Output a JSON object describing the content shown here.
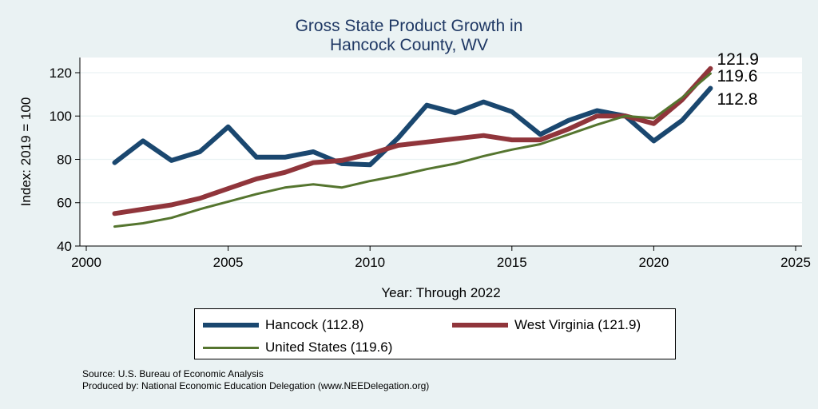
{
  "chart_data": {
    "type": "line",
    "title_line1": "Gross State Product Growth in",
    "title_line2": "Hancock County, WV",
    "xlabel": "Year: Through 2022",
    "ylabel": "Index: 2019 = 100",
    "xlim": [
      2000,
      2025
    ],
    "ylim": [
      40,
      127
    ],
    "xticks": [
      2000,
      2005,
      2010,
      2015,
      2020,
      2025
    ],
    "yticks": [
      40,
      60,
      80,
      100,
      120
    ],
    "x": [
      2001,
      2002,
      2003,
      2004,
      2005,
      2006,
      2007,
      2008,
      2009,
      2010,
      2011,
      2012,
      2013,
      2014,
      2015,
      2016,
      2017,
      2018,
      2019,
      2020,
      2021,
      2022
    ],
    "series": [
      {
        "name": "Hancock",
        "legend_label": "Hancock  (112.8)",
        "end_label": "112.8",
        "color": "#1a476f",
        "width": 6,
        "values": [
          78.5,
          88.5,
          79.5,
          83.5,
          95,
          81,
          81,
          83.5,
          78,
          77.5,
          90,
          105,
          101.5,
          106.5,
          102,
          91.5,
          98,
          102.5,
          100,
          88.5,
          98,
          112.8
        ]
      },
      {
        "name": "West Virginia",
        "legend_label": "West Virginia (121.9)",
        "end_label": "121.9",
        "color": "#90353b",
        "width": 6,
        "values": [
          55,
          57,
          59,
          62,
          66.5,
          71,
          74,
          78.5,
          79.5,
          82.5,
          86.5,
          88,
          89.5,
          91,
          89,
          89,
          94,
          100,
          100,
          96.5,
          107.5,
          121.9
        ]
      },
      {
        "name": "United States",
        "legend_label": "United States (119.6)",
        "end_label": "119.6",
        "color": "#55752f",
        "width": 3,
        "values": [
          49,
          50.5,
          53,
          57,
          60.5,
          64,
          67,
          68.5,
          67,
          70,
          72.5,
          75.5,
          78,
          81.5,
          84.5,
          87,
          91.5,
          96,
          100,
          99,
          108.5,
          119.6
        ]
      }
    ]
  },
  "footer": {
    "source": "Source: U.S. Bureau of Economic Analysis",
    "produced_by": "Produced by: National Economic Education Delegation (www.NEEDelegation.org)"
  }
}
